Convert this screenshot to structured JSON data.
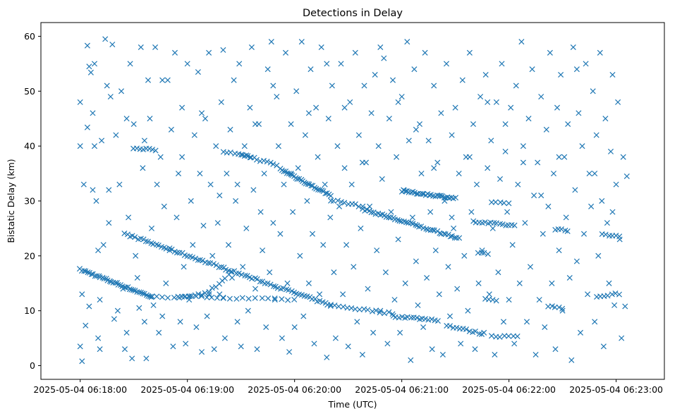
{
  "chart_data": {
    "type": "scatter",
    "title": "Detections in Delay",
    "xlabel": "Time (UTC)",
    "ylabel": "Bistatic Delay (km)",
    "marker": "x",
    "color": "#1f77b4",
    "x_unit": "seconds after 2025-05-04 06:18:00",
    "xlim": [
      -22,
      327
    ],
    "ylim": [
      -2.5,
      62.5
    ],
    "x_ticks": [
      {
        "value": 0,
        "label": "2025-05-04 06:18:00"
      },
      {
        "value": 60,
        "label": "2025-05-04 06:19:00"
      },
      {
        "value": 120,
        "label": "2025-05-04 06:20:00"
      },
      {
        "value": 180,
        "label": "2025-05-04 06:21:00"
      },
      {
        "value": 240,
        "label": "2025-05-04 06:22:00"
      },
      {
        "value": 300,
        "label": "2025-05-04 06:23:00"
      }
    ],
    "y_ticks": [
      {
        "value": 0,
        "label": "0"
      },
      {
        "value": 10,
        "label": "10"
      },
      {
        "value": 20,
        "label": "20"
      },
      {
        "value": 30,
        "label": "30"
      },
      {
        "value": 40,
        "label": "40"
      },
      {
        "value": 50,
        "label": "50"
      },
      {
        "value": 60,
        "label": "60"
      }
    ],
    "tracks": [
      {
        "x0": 0,
        "y0": 17.5,
        "x1": 40,
        "y1": 12.5,
        "n": 40
      },
      {
        "x0": 40,
        "y0": 12.5,
        "x1": 80,
        "y1": 12.5,
        "n": 14
      },
      {
        "x0": 80,
        "y0": 12.3,
        "x1": 120,
        "y1": 12.0,
        "n": 12
      },
      {
        "x0": 25,
        "y0": 24.0,
        "x1": 140,
        "y1": 11.0,
        "n": 80
      },
      {
        "x0": 140,
        "y0": 11.0,
        "x1": 175,
        "y1": 9.5,
        "n": 16
      },
      {
        "x0": 175,
        "y0": 9.0,
        "x1": 200,
        "y1": 8.3,
        "n": 16
      },
      {
        "x0": 205,
        "y0": 7.3,
        "x1": 225,
        "y1": 5.8,
        "n": 12
      },
      {
        "x0": 230,
        "y0": 5.3,
        "x1": 245,
        "y1": 5.5,
        "n": 7
      },
      {
        "x0": 30,
        "y0": 39.5,
        "x1": 42,
        "y1": 39.3,
        "n": 8
      },
      {
        "x0": 55,
        "y0": 12.5,
        "x1": 72,
        "y1": 13.2,
        "n": 10
      },
      {
        "x0": 72,
        "y0": 13.5,
        "x1": 85,
        "y1": 17.0,
        "n": 8
      },
      {
        "x0": 80,
        "y0": 39.0,
        "x1": 95,
        "y1": 38.0,
        "n": 8
      },
      {
        "x0": 90,
        "y0": 38.5,
        "x1": 110,
        "y1": 36.5,
        "n": 12
      },
      {
        "x0": 112,
        "y0": 35.8,
        "x1": 140,
        "y1": 31.0,
        "n": 30
      },
      {
        "x0": 140,
        "y0": 30.2,
        "x1": 158,
        "y1": 29.0,
        "n": 10
      },
      {
        "x0": 158,
        "y0": 28.5,
        "x1": 212,
        "y1": 23.2,
        "n": 45
      },
      {
        "x0": 180,
        "y0": 31.8,
        "x1": 210,
        "y1": 30.5,
        "n": 30
      },
      {
        "x0": 220,
        "y0": 26.2,
        "x1": 243,
        "y1": 25.5,
        "n": 15
      },
      {
        "x0": 223,
        "y0": 20.6,
        "x1": 228,
        "y1": 20.5,
        "n": 4
      },
      {
        "x0": 230,
        "y0": 29.7,
        "x1": 240,
        "y1": 29.5,
        "n": 5
      },
      {
        "x0": 227,
        "y0": 12.2,
        "x1": 233,
        "y1": 12.0,
        "n": 4
      },
      {
        "x0": 262,
        "y0": 10.8,
        "x1": 270,
        "y1": 10.5,
        "n": 5
      },
      {
        "x0": 266,
        "y0": 24.9,
        "x1": 273,
        "y1": 24.5,
        "n": 5
      },
      {
        "x0": 289,
        "y0": 12.6,
        "x1": 302,
        "y1": 13.1,
        "n": 7
      },
      {
        "x0": 292,
        "y0": 23.9,
        "x1": 302,
        "y1": 23.7,
        "n": 6
      }
    ],
    "scatter_points": [
      [
        0,
        3.5
      ],
      [
        0,
        48
      ],
      [
        0,
        40
      ],
      [
        1,
        0.8
      ],
      [
        1,
        13
      ],
      [
        2,
        33
      ],
      [
        3,
        7.3
      ],
      [
        4,
        58.3
      ],
      [
        4,
        43.4
      ],
      [
        5,
        10.8
      ],
      [
        5,
        54.5
      ],
      [
        6,
        53.4
      ],
      [
        7,
        32
      ],
      [
        8,
        40
      ],
      [
        8,
        55
      ],
      [
        9,
        30
      ],
      [
        10,
        5
      ],
      [
        10,
        21
      ],
      [
        11,
        3
      ],
      [
        11,
        12
      ],
      [
        12,
        41
      ],
      [
        13,
        22
      ],
      [
        14,
        59.5
      ],
      [
        15,
        51
      ],
      [
        16,
        26
      ],
      [
        17,
        49
      ],
      [
        18,
        58.5
      ],
      [
        19,
        8.5
      ],
      [
        20,
        42
      ],
      [
        21,
        10
      ],
      [
        22,
        33
      ],
      [
        23,
        50
      ],
      [
        24,
        14
      ],
      [
        25,
        3
      ],
      [
        26,
        6
      ],
      [
        27,
        27
      ],
      [
        28,
        55
      ],
      [
        29,
        1.3
      ],
      [
        30,
        44
      ],
      [
        31,
        20
      ],
      [
        32,
        16
      ],
      [
        33,
        10.5
      ],
      [
        34,
        58
      ],
      [
        35,
        36
      ],
      [
        36,
        8
      ],
      [
        37,
        1.3
      ],
      [
        38,
        52
      ],
      [
        39,
        45
      ],
      [
        40,
        25
      ],
      [
        41,
        11
      ],
      [
        42,
        58
      ],
      [
        43,
        33
      ],
      [
        44,
        6
      ],
      [
        45,
        38
      ],
      [
        46,
        9
      ],
      [
        47,
        29
      ],
      [
        48,
        15
      ],
      [
        49,
        52
      ],
      [
        50,
        21
      ],
      [
        51,
        43
      ],
      [
        52,
        3.5
      ],
      [
        53,
        57
      ],
      [
        54,
        27
      ],
      [
        55,
        35
      ],
      [
        56,
        8
      ],
      [
        57,
        47
      ],
      [
        58,
        18
      ],
      [
        59,
        4
      ],
      [
        60,
        55
      ],
      [
        61,
        12
      ],
      [
        62,
        30
      ],
      [
        63,
        22
      ],
      [
        64,
        42
      ],
      [
        65,
        7
      ],
      [
        66,
        53.5
      ],
      [
        67,
        35
      ],
      [
        68,
        2.5
      ],
      [
        69,
        25.5
      ],
      [
        70,
        45
      ],
      [
        71,
        9
      ],
      [
        72,
        57
      ],
      [
        73,
        33
      ],
      [
        74,
        20
      ],
      [
        75,
        3
      ],
      [
        76,
        40
      ],
      [
        77,
        26
      ],
      [
        78,
        13
      ],
      [
        79,
        48
      ],
      [
        80,
        57.5
      ],
      [
        81,
        5
      ],
      [
        82,
        35
      ],
      [
        83,
        22
      ],
      [
        84,
        43
      ],
      [
        85,
        16
      ],
      [
        86,
        52
      ],
      [
        87,
        30
      ],
      [
        88,
        8
      ],
      [
        89,
        55
      ],
      [
        90,
        3.5
      ],
      [
        91,
        18
      ],
      [
        92,
        40
      ],
      [
        93,
        25
      ],
      [
        94,
        10
      ],
      [
        95,
        47
      ],
      [
        96,
        58
      ],
      [
        97,
        32
      ],
      [
        98,
        14
      ],
      [
        99,
        3
      ],
      [
        100,
        44
      ],
      [
        101,
        28
      ],
      [
        102,
        21
      ],
      [
        103,
        35
      ],
      [
        104,
        7
      ],
      [
        105,
        54
      ],
      [
        106,
        17
      ],
      [
        107,
        59
      ],
      [
        108,
        26
      ],
      [
        109,
        12
      ],
      [
        110,
        49
      ],
      [
        111,
        40
      ],
      [
        112,
        24
      ],
      [
        113,
        5
      ],
      [
        114,
        33
      ],
      [
        115,
        57
      ],
      [
        116,
        15
      ],
      [
        117,
        2.5
      ],
      [
        118,
        44
      ],
      [
        119,
        28
      ],
      [
        120,
        7
      ],
      [
        121,
        50
      ],
      [
        122,
        36
      ],
      [
        123,
        20
      ],
      [
        124,
        59
      ],
      [
        125,
        9
      ],
      [
        126,
        42
      ],
      [
        127,
        30
      ],
      [
        128,
        15
      ],
      [
        129,
        54
      ],
      [
        130,
        24
      ],
      [
        131,
        4
      ],
      [
        132,
        47
      ],
      [
        133,
        38
      ],
      [
        134,
        13
      ],
      [
        135,
        58
      ],
      [
        136,
        22
      ],
      [
        137,
        33
      ],
      [
        138,
        1.5
      ],
      [
        139,
        45
      ],
      [
        140,
        27
      ],
      [
        141,
        51
      ],
      [
        142,
        17
      ],
      [
        143,
        5
      ],
      [
        144,
        40
      ],
      [
        145,
        29
      ],
      [
        146,
        55
      ],
      [
        147,
        13
      ],
      [
        148,
        36
      ],
      [
        149,
        22
      ],
      [
        150,
        3.5
      ],
      [
        151,
        48
      ],
      [
        152,
        33
      ],
      [
        153,
        18
      ],
      [
        154,
        57
      ],
      [
        155,
        8
      ],
      [
        156,
        42
      ],
      [
        157,
        25
      ],
      [
        158,
        2
      ],
      [
        159,
        51
      ],
      [
        160,
        37
      ],
      [
        161,
        14
      ],
      [
        162,
        29
      ],
      [
        163,
        46
      ],
      [
        164,
        6
      ],
      [
        165,
        53
      ],
      [
        166,
        21
      ],
      [
        167,
        40
      ],
      [
        168,
        10
      ],
      [
        169,
        34
      ],
      [
        170,
        56
      ],
      [
        171,
        17
      ],
      [
        172,
        4
      ],
      [
        173,
        45
      ],
      [
        174,
        28
      ],
      [
        175,
        52
      ],
      [
        176,
        12
      ],
      [
        177,
        38
      ],
      [
        178,
        23
      ],
      [
        179,
        6
      ],
      [
        180,
        49
      ],
      [
        181,
        32
      ],
      [
        182,
        15
      ],
      [
        183,
        59
      ],
      [
        184,
        41
      ],
      [
        185,
        1
      ],
      [
        186,
        27
      ],
      [
        187,
        54
      ],
      [
        188,
        19
      ],
      [
        189,
        11
      ],
      [
        190,
        44
      ],
      [
        191,
        35
      ],
      [
        192,
        7
      ],
      [
        193,
        57
      ],
      [
        194,
        16
      ],
      [
        195,
        41
      ],
      [
        196,
        28
      ],
      [
        197,
        3
      ],
      [
        198,
        51
      ],
      [
        199,
        21
      ],
      [
        200,
        37
      ],
      [
        201,
        13
      ],
      [
        202,
        46
      ],
      [
        203,
        2
      ],
      [
        204,
        30
      ],
      [
        205,
        55
      ],
      [
        206,
        18
      ],
      [
        207,
        9
      ],
      [
        208,
        42
      ],
      [
        209,
        25
      ],
      [
        210,
        47
      ],
      [
        211,
        14
      ],
      [
        212,
        35
      ],
      [
        213,
        4
      ],
      [
        214,
        52
      ],
      [
        215,
        20
      ],
      [
        216,
        38
      ],
      [
        217,
        10
      ],
      [
        218,
        57
      ],
      [
        219,
        28
      ],
      [
        220,
        44
      ],
      [
        221,
        3
      ],
      [
        222,
        33
      ],
      [
        223,
        15
      ],
      [
        224,
        49
      ],
      [
        225,
        21
      ],
      [
        226,
        6
      ],
      [
        227,
        53
      ],
      [
        228,
        36
      ],
      [
        229,
        13
      ],
      [
        230,
        41
      ],
      [
        231,
        25
      ],
      [
        232,
        2
      ],
      [
        233,
        48
      ],
      [
        234,
        17
      ],
      [
        235,
        34
      ],
      [
        236,
        55
      ],
      [
        237,
        8
      ],
      [
        238,
        39
      ],
      [
        239,
        28
      ],
      [
        240,
        12
      ],
      [
        241,
        47
      ],
      [
        242,
        22
      ],
      [
        243,
        4
      ],
      [
        244,
        51
      ],
      [
        245,
        33
      ],
      [
        246,
        15
      ],
      [
        247,
        59
      ],
      [
        248,
        40
      ],
      [
        249,
        26
      ],
      [
        250,
        8
      ],
      [
        251,
        45
      ],
      [
        252,
        18
      ],
      [
        253,
        54
      ],
      [
        254,
        31
      ],
      [
        255,
        2
      ],
      [
        256,
        37
      ],
      [
        257,
        12
      ],
      [
        258,
        49
      ],
      [
        259,
        24
      ],
      [
        260,
        7
      ],
      [
        261,
        43
      ],
      [
        262,
        29
      ],
      [
        263,
        57
      ],
      [
        264,
        15
      ],
      [
        265,
        35
      ],
      [
        266,
        3
      ],
      [
        267,
        47
      ],
      [
        268,
        21
      ],
      [
        269,
        53
      ],
      [
        270,
        10
      ],
      [
        271,
        38
      ],
      [
        272,
        27
      ],
      [
        273,
        44
      ],
      [
        274,
        16
      ],
      [
        275,
        1
      ],
      [
        276,
        58
      ],
      [
        277,
        32
      ],
      [
        278,
        19
      ],
      [
        279,
        46
      ],
      [
        280,
        6
      ],
      [
        281,
        40
      ],
      [
        282,
        24
      ],
      [
        283,
        55
      ],
      [
        284,
        13
      ],
      [
        285,
        35
      ],
      [
        286,
        29
      ],
      [
        287,
        50
      ],
      [
        288,
        8
      ],
      [
        289,
        42
      ],
      [
        290,
        20
      ],
      [
        291,
        57
      ],
      [
        292,
        30
      ],
      [
        293,
        3.5
      ],
      [
        294,
        45
      ],
      [
        295,
        26
      ],
      [
        296,
        15
      ],
      [
        297,
        39
      ],
      [
        298,
        53
      ],
      [
        299,
        11
      ],
      [
        300,
        33
      ],
      [
        301,
        48
      ],
      [
        302,
        23
      ],
      [
        303,
        5
      ],
      [
        304,
        38
      ],
      [
        305,
        10.8
      ],
      [
        306,
        34.5
      ],
      [
        7,
        46
      ],
      [
        16,
        32
      ],
      [
        26,
        45
      ],
      [
        36,
        41
      ],
      [
        46,
        52
      ],
      [
        57,
        38
      ],
      [
        68,
        46
      ],
      [
        78,
        31
      ],
      [
        88,
        33
      ],
      [
        98,
        44
      ],
      [
        108,
        51
      ],
      [
        118,
        35
      ],
      [
        128,
        46
      ],
      [
        138,
        55
      ],
      [
        148,
        47
      ],
      [
        158,
        37
      ],
      [
        168,
        58
      ],
      [
        178,
        48
      ],
      [
        188,
        43
      ],
      [
        198,
        36
      ],
      [
        208,
        27
      ],
      [
        218,
        38
      ],
      [
        228,
        48
      ],
      [
        238,
        44
      ],
      [
        248,
        37
      ],
      [
        258,
        31
      ],
      [
        268,
        38
      ],
      [
        278,
        54
      ],
      [
        288,
        35
      ],
      [
        298,
        28
      ]
    ]
  }
}
